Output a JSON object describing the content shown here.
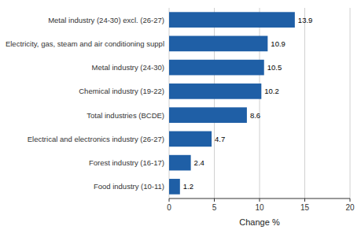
{
  "chart_data": {
    "type": "bar",
    "orientation": "horizontal",
    "categories": [
      "Food industry (10-11)",
      "Forest industry (16-17)",
      "Electrical and electronics industry (26-27)",
      "Total industries (BCDE)",
      "Chemical industry (19-22)",
      "Metal industry (24-30)",
      "Electricity, gas, steam and air conditioning suppl",
      "Metal industry (24-30) excl. (26-27)"
    ],
    "values": [
      1.2,
      2.4,
      4.7,
      8.6,
      10.2,
      10.5,
      10.9,
      13.9
    ],
    "color": "#1F5FA6",
    "xlabel": "Change %",
    "xlim": [
      0,
      20
    ],
    "xticks": [
      0,
      5,
      10,
      15,
      20
    ],
    "grid": true,
    "data_labels": true
  }
}
